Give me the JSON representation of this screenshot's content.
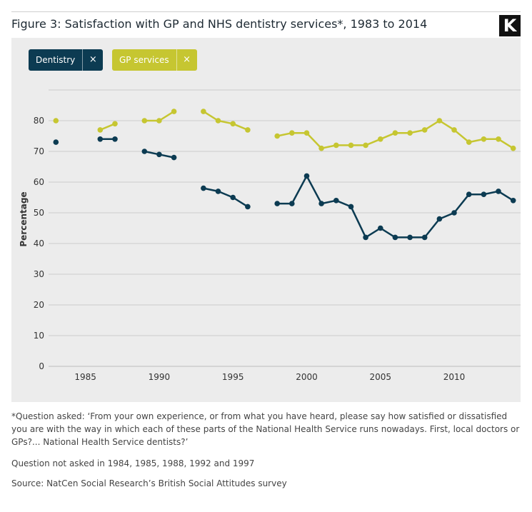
{
  "header": {
    "title": "Figure 3: Satisfaction with GP and NHS dentistry services*, 1983 to 2014",
    "logo": "K"
  },
  "legend": {
    "dentistry": {
      "label": "Dentistry",
      "close": "×"
    },
    "gp": {
      "label": "GP services",
      "close": "×"
    }
  },
  "chart_data": {
    "type": "line",
    "title": "Figure 3: Satisfaction with GP and NHS dentistry services*, 1983 to 2014",
    "xlabel": "",
    "ylabel": "Percentage",
    "xlim": [
      1982.5,
      2014.5
    ],
    "ylim": [
      0,
      90
    ],
    "xticks": [
      1985,
      1990,
      1995,
      2000,
      2005,
      2010
    ],
    "yticks": [
      0,
      10,
      20,
      30,
      40,
      50,
      60,
      70,
      80
    ],
    "grid": "horizontal",
    "legend_position": "top-left",
    "series": [
      {
        "name": "GP services",
        "color": "#c6c631",
        "x": [
          1983,
          1984,
          1985,
          1986,
          1987,
          1988,
          1989,
          1990,
          1991,
          1992,
          1993,
          1994,
          1995,
          1996,
          1997,
          1998,
          1999,
          2000,
          2001,
          2002,
          2003,
          2004,
          2005,
          2006,
          2007,
          2008,
          2009,
          2010,
          2011,
          2012,
          2013,
          2014
        ],
        "values": [
          80,
          null,
          null,
          77,
          79,
          null,
          80,
          80,
          83,
          null,
          83,
          80,
          79,
          77,
          null,
          75,
          76,
          76,
          71,
          72,
          72,
          72,
          74,
          76,
          76,
          77,
          80,
          77,
          73,
          74,
          74,
          71
        ]
      },
      {
        "name": "Dentistry",
        "color": "#0c3b52",
        "x": [
          1983,
          1984,
          1985,
          1986,
          1987,
          1988,
          1989,
          1990,
          1991,
          1992,
          1993,
          1994,
          1995,
          1996,
          1997,
          1998,
          1999,
          2000,
          2001,
          2002,
          2003,
          2004,
          2005,
          2006,
          2007,
          2008,
          2009,
          2010,
          2011,
          2012,
          2013,
          2014
        ],
        "values": [
          73,
          null,
          null,
          74,
          74,
          null,
          70,
          69,
          68,
          null,
          58,
          57,
          55,
          52,
          null,
          53,
          53,
          62,
          53,
          54,
          52,
          42,
          45,
          42,
          42,
          42,
          48,
          50,
          56,
          56,
          57,
          54
        ]
      }
    ]
  },
  "notes": {
    "question": "*Question asked: ‘From your own experience, or from what you have heard, please say how satisfied or dissatisfied you are with the way in which each of these parts of the National Health Service runs nowadays. First, local doctors or GPs?... National Health Service dentists?’",
    "not_asked": "Question not asked in 1984, 1985, 1988, 1992 and 1997",
    "source": "Source: NatCen Social Research’s British Social Attitudes survey"
  }
}
